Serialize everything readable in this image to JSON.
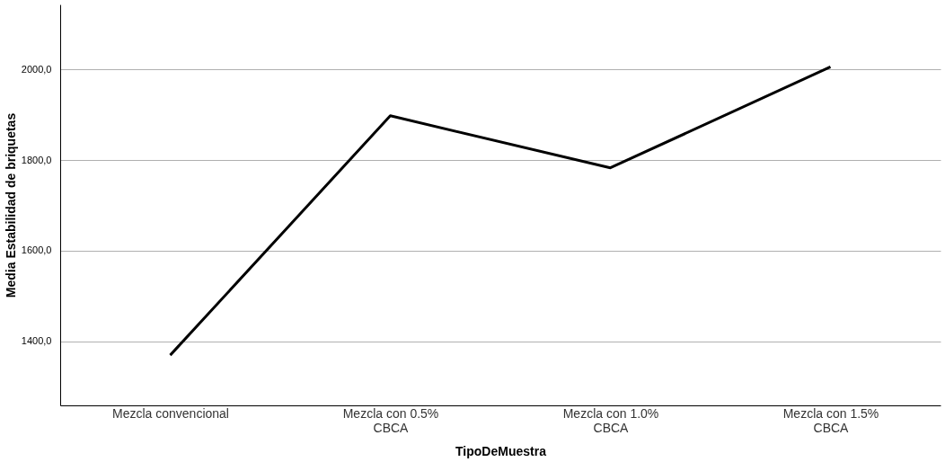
{
  "chart_data": {
    "type": "line",
    "xlabel": "TipoDeMuestra",
    "ylabel": "Media Estabilidad de briquetas",
    "categories": [
      "Mezcla convencional",
      "Mezcla con 0.5%\nCBCA",
      "Mezcla con 1.0%\nCBCA",
      "Mezcla con 1.5%\nCBCA"
    ],
    "series": [
      {
        "color": "#000000",
        "values": [
          1369,
          1898,
          1783,
          2006
        ]
      }
    ],
    "ylim": [
      1258,
      2144
    ],
    "yticks": [
      {
        "value": 1400,
        "label": "1400,0"
      },
      {
        "value": 1600,
        "label": "1600,0"
      },
      {
        "value": 1800,
        "label": "1800,0"
      },
      {
        "value": 2000,
        "label": "2000,0"
      }
    ],
    "grid": "y",
    "marker": "none",
    "line_style": "solid"
  }
}
